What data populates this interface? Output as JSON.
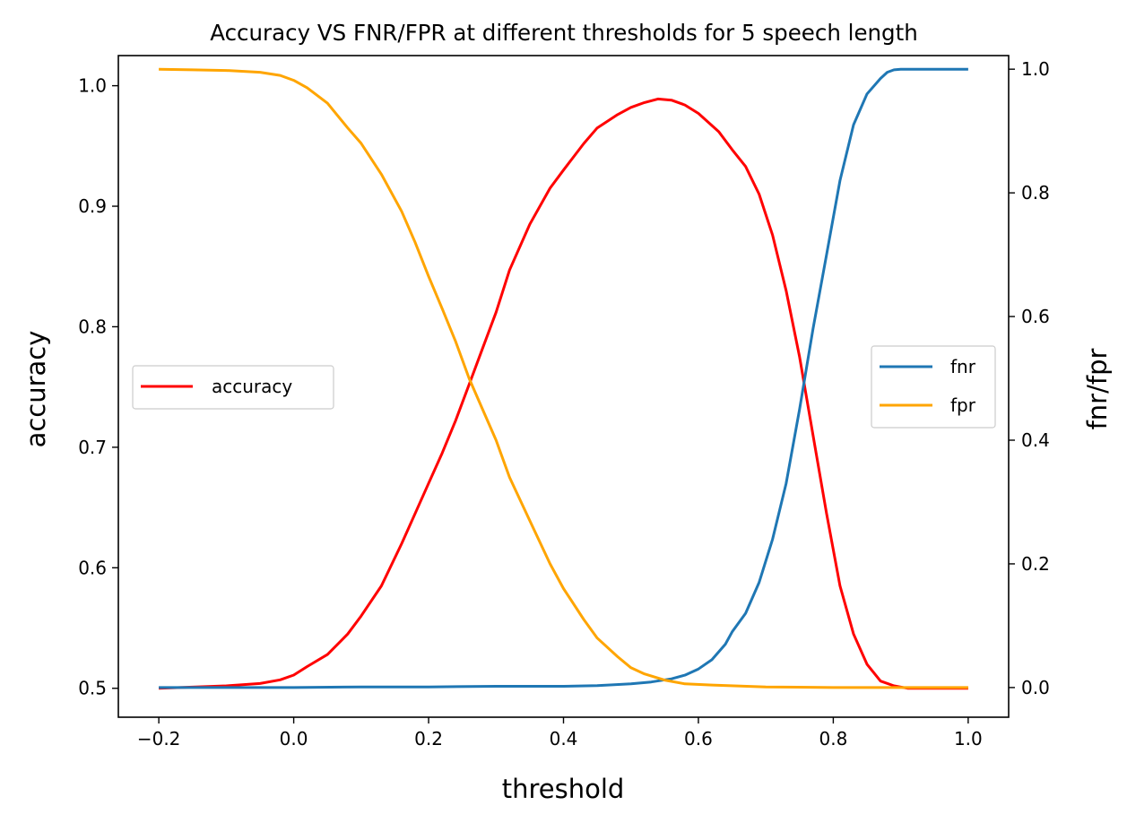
{
  "chart_data": {
    "type": "line",
    "title": "Accuracy VS FNR/FPR at different thresholds for 5 speech length",
    "xlabel": "threshold",
    "ylabel_left": "accuracy",
    "ylabel_right": "fnr/fpr",
    "xlim": [
      -0.26,
      1.06
    ],
    "ylim_left": [
      0.476,
      1.025
    ],
    "ylim_right": [
      -0.048,
      1.022
    ],
    "xticks": [
      "−0.2",
      "0.0",
      "0.2",
      "0.4",
      "0.6",
      "0.8",
      "1.0"
    ],
    "xtick_values": [
      -0.2,
      0.0,
      0.2,
      0.4,
      0.6,
      0.8,
      1.0
    ],
    "yticks_left": [
      "0.5",
      "0.6",
      "0.7",
      "0.8",
      "0.9",
      "1.0"
    ],
    "ytick_values_left": [
      0.5,
      0.6,
      0.7,
      0.8,
      0.9,
      1.0
    ],
    "yticks_right": [
      "0.0",
      "0.2",
      "0.4",
      "0.6",
      "0.8",
      "1.0"
    ],
    "ytick_values_right": [
      0.0,
      0.2,
      0.4,
      0.6,
      0.8,
      1.0
    ],
    "grid": false,
    "series": [
      {
        "name": "accuracy",
        "axis": "left",
        "color": "#ff0000",
        "x": [
          -0.2,
          -0.15,
          -0.1,
          -0.05,
          -0.02,
          0.0,
          0.02,
          0.05,
          0.08,
          0.1,
          0.13,
          0.16,
          0.18,
          0.2,
          0.22,
          0.24,
          0.26,
          0.28,
          0.3,
          0.32,
          0.35,
          0.38,
          0.4,
          0.43,
          0.45,
          0.48,
          0.5,
          0.52,
          0.54,
          0.56,
          0.58,
          0.6,
          0.63,
          0.65,
          0.67,
          0.69,
          0.71,
          0.73,
          0.75,
          0.77,
          0.79,
          0.81,
          0.83,
          0.85,
          0.87,
          0.89,
          0.91,
          0.95,
          1.0
        ],
        "y": [
          0.5,
          0.501,
          0.502,
          0.504,
          0.507,
          0.511,
          0.518,
          0.528,
          0.545,
          0.56,
          0.585,
          0.62,
          0.645,
          0.67,
          0.695,
          0.722,
          0.752,
          0.782,
          0.812,
          0.847,
          0.885,
          0.915,
          0.93,
          0.952,
          0.965,
          0.976,
          0.982,
          0.986,
          0.989,
          0.988,
          0.984,
          0.977,
          0.962,
          0.947,
          0.933,
          0.91,
          0.876,
          0.83,
          0.775,
          0.71,
          0.645,
          0.585,
          0.545,
          0.52,
          0.506,
          0.502,
          0.5,
          0.5,
          0.5
        ]
      },
      {
        "name": "fnr",
        "axis": "right",
        "color": "#1f77b4",
        "x": [
          -0.2,
          -0.1,
          0.0,
          0.1,
          0.2,
          0.3,
          0.4,
          0.45,
          0.5,
          0.53,
          0.56,
          0.58,
          0.6,
          0.62,
          0.64,
          0.65,
          0.67,
          0.69,
          0.71,
          0.73,
          0.75,
          0.77,
          0.79,
          0.81,
          0.83,
          0.85,
          0.87,
          0.88,
          0.89,
          0.9,
          0.92,
          0.95,
          1.0
        ],
        "y": [
          0.0,
          0.0,
          0.0,
          0.001,
          0.001,
          0.002,
          0.002,
          0.003,
          0.006,
          0.009,
          0.014,
          0.02,
          0.03,
          0.045,
          0.07,
          0.09,
          0.12,
          0.17,
          0.24,
          0.33,
          0.45,
          0.58,
          0.7,
          0.82,
          0.91,
          0.96,
          0.985,
          0.995,
          0.999,
          1.0,
          1.0,
          1.0,
          1.0
        ]
      },
      {
        "name": "fpr",
        "axis": "right",
        "color": "#ffa500",
        "x": [
          -0.2,
          -0.15,
          -0.1,
          -0.05,
          -0.02,
          0.0,
          0.02,
          0.05,
          0.08,
          0.1,
          0.13,
          0.16,
          0.18,
          0.2,
          0.22,
          0.24,
          0.26,
          0.28,
          0.3,
          0.32,
          0.35,
          0.38,
          0.4,
          0.43,
          0.45,
          0.48,
          0.5,
          0.52,
          0.55,
          0.58,
          0.62,
          0.7,
          0.8,
          0.9,
          1.0
        ],
        "y": [
          1.0,
          0.999,
          0.998,
          0.995,
          0.99,
          0.982,
          0.97,
          0.945,
          0.905,
          0.88,
          0.83,
          0.77,
          0.72,
          0.665,
          0.613,
          0.56,
          0.5,
          0.45,
          0.4,
          0.34,
          0.27,
          0.2,
          0.16,
          0.11,
          0.08,
          0.05,
          0.032,
          0.022,
          0.012,
          0.006,
          0.004,
          0.001,
          0.0,
          0.0,
          0.0
        ]
      }
    ],
    "legends": [
      {
        "entries": [
          "accuracy"
        ],
        "placement": "center-left"
      },
      {
        "entries": [
          "fnr",
          "fpr"
        ],
        "placement": "center-right"
      }
    ],
    "colors": {
      "left_axis": "#ff0000",
      "right_axis": "#000000"
    }
  }
}
